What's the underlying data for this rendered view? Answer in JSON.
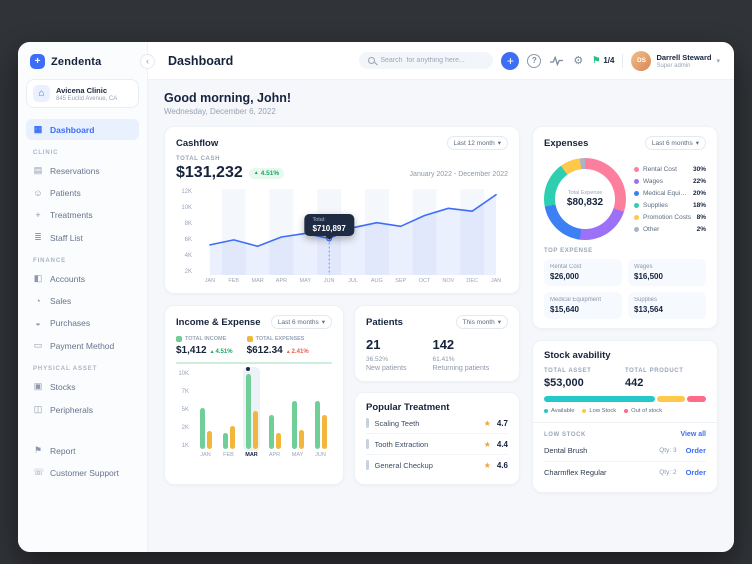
{
  "topbar": {
    "title": "Dashboard",
    "search_placeholder": "Search  for anything here...",
    "progress": "1/4",
    "user": {
      "name": "Darrell Steward",
      "role": "Super admin",
      "initials": "DS"
    }
  },
  "sidebar": {
    "logo": "Zendenta",
    "clinic": {
      "name": "Avicena Clinic",
      "address": "845 Euclid Avenue, CA"
    },
    "dashboard_label": "Dashboard",
    "sections": [
      {
        "title": "CLINIC",
        "items": [
          "Reservations",
          "Patients",
          "Treatments",
          "Staff List"
        ]
      },
      {
        "title": "FINANCE",
        "items": [
          "Accounts",
          "Sales",
          "Purchases",
          "Payment Method"
        ]
      },
      {
        "title": "PHYSICAL ASSET",
        "items": [
          "Stocks",
          "Peripherals"
        ]
      }
    ],
    "footer_items": [
      "Report",
      "Customer Support"
    ]
  },
  "greeting": {
    "title": "Good morning, John!",
    "date": "Wednesday, December 6, 2022"
  },
  "cashflow": {
    "title": "Cashflow",
    "period": "Last 12 month",
    "total_label": "TOTAL CASH",
    "total": "$131,232",
    "delta": "4.51%",
    "range_label": "January 2022 - December 2022",
    "tooltip": {
      "label": "Total:",
      "value": "$710,897",
      "month_index": 5
    },
    "y_ticks": [
      "12K",
      "10K",
      "8K",
      "6K",
      "4K",
      "2K"
    ],
    "y_max": 12,
    "months": [
      "JAN",
      "FEB",
      "MAR",
      "APR",
      "MAY",
      "JUN",
      "JUL",
      "AUG",
      "SEP",
      "OCT",
      "NOV",
      "DEC",
      "JAN"
    ],
    "values_k": [
      4.2,
      4.9,
      4.0,
      5.3,
      5.8,
      5.1,
      6.6,
      7.3,
      6.8,
      8.3,
      9.3,
      8.9,
      11.2
    ]
  },
  "expenses": {
    "title": "Expenses",
    "period": "Last 6 months",
    "center_label": "Total Expense",
    "center_value": "$80,832",
    "segments": [
      {
        "label": "Rental Cost",
        "pct": 30,
        "color": "#fd7f9d"
      },
      {
        "label": "Wages",
        "pct": 22,
        "color": "#9d71f7"
      },
      {
        "label": "Medical Equipment",
        "pct": 20,
        "color": "#3d7ff5"
      },
      {
        "label": "Supplies",
        "pct": 18,
        "color": "#2ecfb0"
      },
      {
        "label": "Promotion Costs",
        "pct": 8,
        "color": "#ffc84a"
      },
      {
        "label": "Other",
        "pct": 2,
        "color": "#aab4c5"
      }
    ],
    "top_expense_label": "TOP EXPENSE",
    "top_expenses": [
      {
        "name": "Rental Cost",
        "value": "$26,000"
      },
      {
        "name": "Wages",
        "value": "$16,500"
      },
      {
        "name": "Medical Equipment",
        "value": "$15,640"
      },
      {
        "name": "Supplies",
        "value": "$13,564"
      }
    ]
  },
  "income_expense": {
    "title": "Income & Expense",
    "period": "Last 6 months",
    "income_label": "TOTAL INCOME",
    "income": "$1,412",
    "income_delta": "4.51%",
    "expense_label": "TOTAL EXPENSES",
    "expense": "$612.34",
    "expense_delta": "2.41%",
    "y_ticks": [
      "10K",
      "7K",
      "5K",
      "2K",
      "1K"
    ],
    "y_max": 10,
    "months": [
      "JAN",
      "FEB",
      "MAR",
      "APR",
      "MAY",
      "JUN"
    ],
    "income_values_k": [
      5.2,
      2.0,
      9.6,
      4.3,
      6.1,
      6.2
    ],
    "expense_values_k": [
      2.3,
      2.9,
      4.9,
      2.1,
      2.4,
      4.4
    ],
    "highlight_index": 2
  },
  "patients": {
    "title": "Patients",
    "period": "This month",
    "stats": [
      {
        "value": "21",
        "pct": "36.52%",
        "label": "New patients"
      },
      {
        "value": "142",
        "pct": "61.41%",
        "label": "Returning patients"
      }
    ]
  },
  "popular_treatment": {
    "title": "Popular Treatment",
    "items": [
      {
        "name": "Scaling Teeth",
        "rating": "4.7"
      },
      {
        "name": "Tooth Extraction",
        "rating": "4.4"
      },
      {
        "name": "General Checkup",
        "rating": "4.6"
      }
    ]
  },
  "stock": {
    "title": "Stock avability",
    "total_asset_label": "TOTAL ASSET",
    "total_asset": "$53,000",
    "total_product_label": "TOTAL PRODUCT",
    "total_product": "442",
    "bar": [
      {
        "label": "Available",
        "pct": 70,
        "color": "#25c9c9"
      },
      {
        "label": "Low Stock",
        "pct": 18,
        "color": "#ffc84a"
      },
      {
        "label": "Out of stock",
        "pct": 12,
        "color": "#fd6b87"
      }
    ],
    "low_stock_label": "LOW STOCK",
    "view_all": "View all",
    "items": [
      {
        "name": "Dental Brush",
        "qty": "Qty: 3",
        "action": "Order"
      },
      {
        "name": "Charmflex Regular",
        "qty": "Qty: 2",
        "action": "Order"
      }
    ]
  },
  "icons": {
    "logo": "+",
    "clinic": "⌂",
    "dashboard": "▦",
    "reservations": "▤",
    "patients": "☺",
    "treatments": "+",
    "staff_list": "≣",
    "accounts": "◧",
    "sales": "◔",
    "purchases": "◒",
    "payment_method": "▭",
    "stocks": "▣",
    "peripherals": "◫",
    "report": "⚑",
    "customer_support": "☏",
    "gear": "⚙",
    "flag": "⚑",
    "help": "?",
    "plus": "+",
    "chevron_down": "▾",
    "chevron_left": "‹",
    "star": "★",
    "up_arrow": "▲"
  },
  "colors": {
    "primary": "#3d6ef5",
    "green": "#1fa560",
    "yellow": "#f2b63c",
    "red": "#e5604c"
  }
}
